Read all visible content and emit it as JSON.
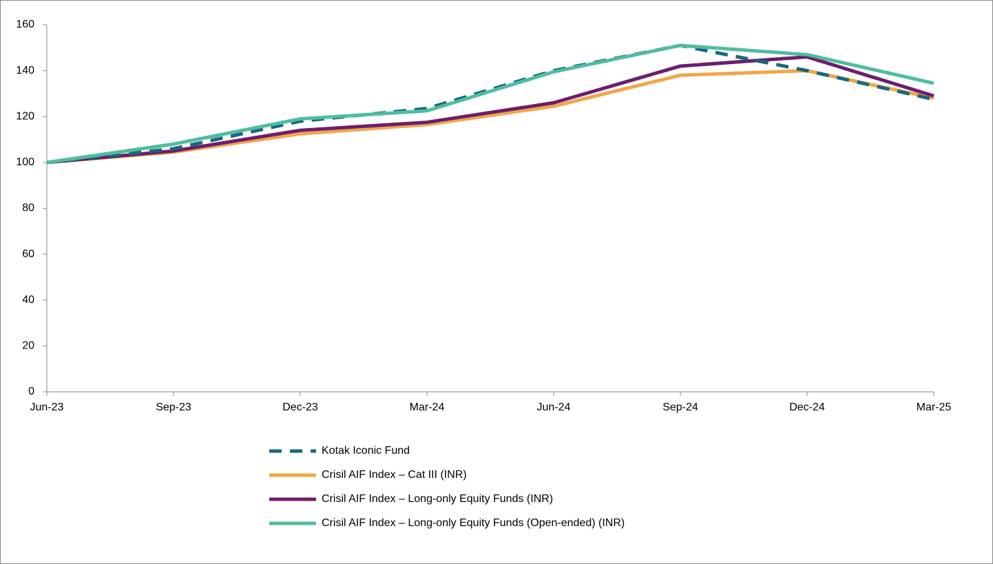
{
  "chart_data": {
    "type": "line",
    "categories": [
      "Jun-23",
      "Sep-23",
      "Dec-23",
      "Mar-24",
      "Jun-24",
      "Sep-24",
      "Dec-24",
      "Mar-25"
    ],
    "series": [
      {
        "name": "Kotak Iconic Fund",
        "color": "#17687d",
        "dashed": true,
        "values": [
          100,
          106,
          118,
          123.5,
          140,
          151,
          140,
          127.5
        ]
      },
      {
        "name": "Crisil AIF Index – Cat III (INR)",
        "color": "#f2a646",
        "values": [
          100,
          104.5,
          112.5,
          116.5,
          124.5,
          138,
          140,
          128
        ]
      },
      {
        "name": "Crisil AIF Index – Long-only Equity Funds (INR)",
        "color": "#6c1e6e",
        "values": [
          100,
          105,
          114,
          117.5,
          126,
          142,
          146,
          129
        ]
      },
      {
        "name": "Crisil AIF Index – Long-only Equity Funds (Open-ended) (INR)",
        "color": "#4fbd9e",
        "values": [
          100,
          108,
          119,
          122.5,
          139.5,
          151,
          147,
          134.5
        ]
      }
    ],
    "ylim": [
      0,
      160
    ],
    "yticks": [
      0,
      20,
      40,
      60,
      80,
      100,
      120,
      140,
      160
    ],
    "grid": false,
    "legend": "bottom"
  }
}
